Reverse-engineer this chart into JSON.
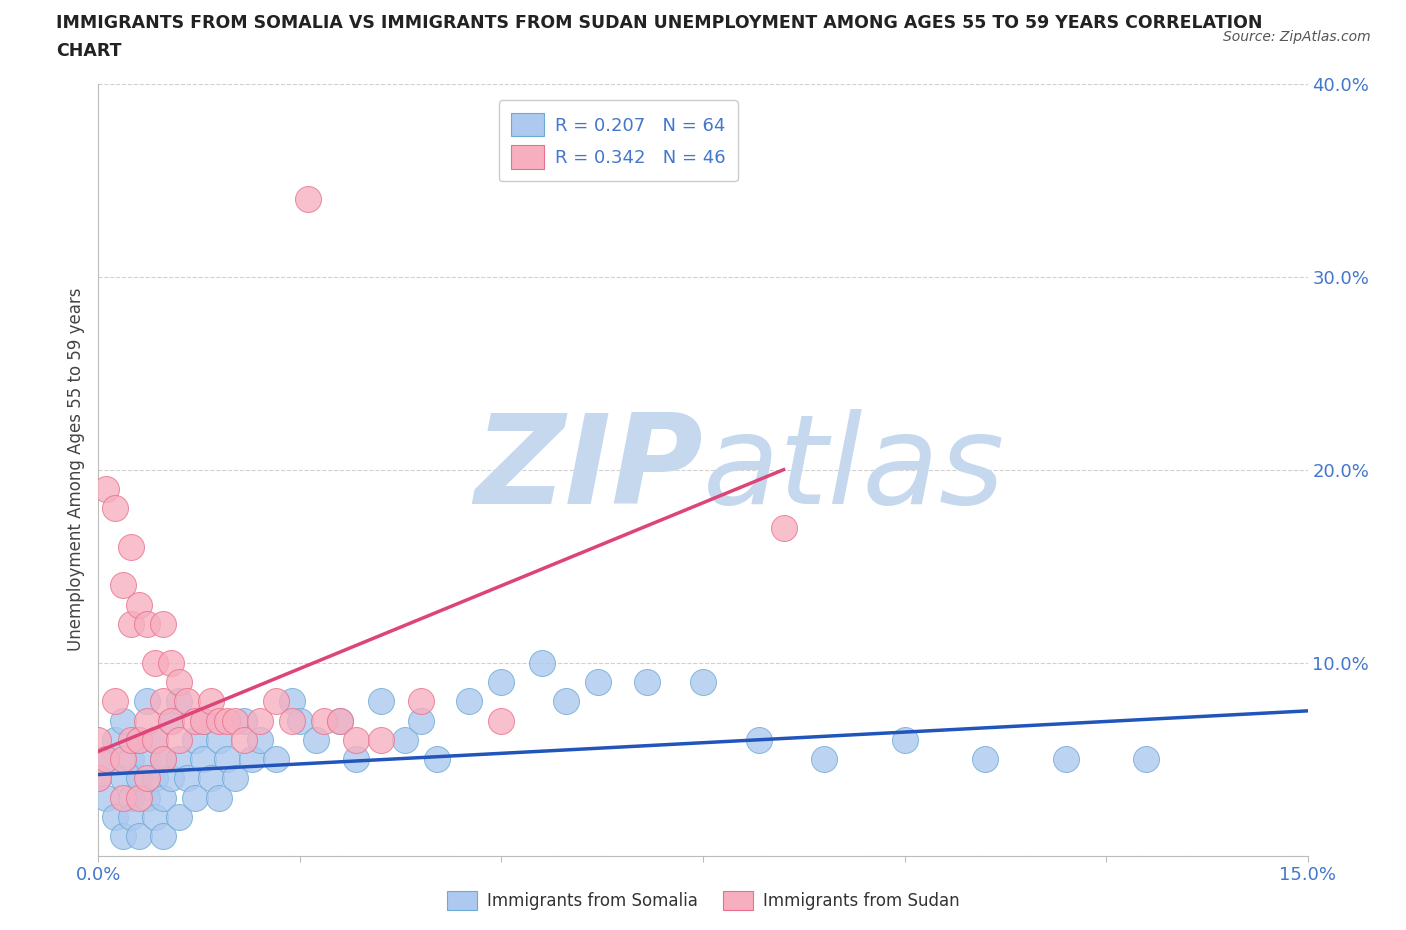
{
  "title_line1": "IMMIGRANTS FROM SOMALIA VS IMMIGRANTS FROM SUDAN UNEMPLOYMENT AMONG AGES 55 TO 59 YEARS CORRELATION",
  "title_line2": "CHART",
  "source": "Source: ZipAtlas.com",
  "ylabel": "Unemployment Among Ages 55 to 59 years",
  "xlim": [
    0.0,
    0.15
  ],
  "ylim": [
    0.0,
    0.4
  ],
  "somalia_color": "#adc9ef",
  "somalia_edge": "#6aaad4",
  "sudan_color": "#f7afc0",
  "sudan_edge": "#e8708a",
  "somalia_line_color": "#2255bb",
  "sudan_line_color": "#dd4477",
  "legend_somalia_R": "0.207",
  "legend_somalia_N": "64",
  "legend_sudan_R": "0.342",
  "legend_sudan_N": "46",
  "watermark_ZIP": "ZIP",
  "watermark_atlas": "atlas",
  "watermark_color": "#c5d8ee",
  "background_color": "#ffffff",
  "grid_color": "#cccccc",
  "tick_color": "#4477cc",
  "somalia_x": [
    0.0,
    0.001,
    0.001,
    0.002,
    0.002,
    0.003,
    0.003,
    0.003,
    0.004,
    0.004,
    0.004,
    0.005,
    0.005,
    0.005,
    0.006,
    0.006,
    0.006,
    0.007,
    0.007,
    0.007,
    0.008,
    0.008,
    0.008,
    0.009,
    0.009,
    0.01,
    0.01,
    0.01,
    0.011,
    0.012,
    0.012,
    0.013,
    0.013,
    0.014,
    0.015,
    0.015,
    0.016,
    0.017,
    0.018,
    0.019,
    0.02,
    0.022,
    0.024,
    0.025,
    0.027,
    0.03,
    0.032,
    0.035,
    0.038,
    0.04,
    0.042,
    0.046,
    0.05,
    0.055,
    0.058,
    0.062,
    0.068,
    0.075,
    0.082,
    0.09,
    0.1,
    0.11,
    0.12,
    0.13
  ],
  "somalia_y": [
    0.04,
    0.03,
    0.05,
    0.02,
    0.06,
    0.01,
    0.04,
    0.07,
    0.03,
    0.05,
    0.02,
    0.04,
    0.06,
    0.01,
    0.03,
    0.05,
    0.08,
    0.02,
    0.04,
    0.06,
    0.03,
    0.05,
    0.01,
    0.04,
    0.07,
    0.02,
    0.05,
    0.08,
    0.04,
    0.03,
    0.06,
    0.05,
    0.07,
    0.04,
    0.03,
    0.06,
    0.05,
    0.04,
    0.07,
    0.05,
    0.06,
    0.05,
    0.08,
    0.07,
    0.06,
    0.07,
    0.05,
    0.08,
    0.06,
    0.07,
    0.05,
    0.08,
    0.09,
    0.1,
    0.08,
    0.09,
    0.09,
    0.09,
    0.06,
    0.05,
    0.06,
    0.05,
    0.05,
    0.05
  ],
  "sudan_x": [
    0.0,
    0.0,
    0.001,
    0.001,
    0.002,
    0.002,
    0.003,
    0.003,
    0.003,
    0.004,
    0.004,
    0.004,
    0.005,
    0.005,
    0.005,
    0.006,
    0.006,
    0.006,
    0.007,
    0.007,
    0.008,
    0.008,
    0.008,
    0.009,
    0.009,
    0.01,
    0.01,
    0.011,
    0.012,
    0.013,
    0.014,
    0.015,
    0.016,
    0.017,
    0.018,
    0.02,
    0.022,
    0.024,
    0.026,
    0.028,
    0.03,
    0.032,
    0.035,
    0.04,
    0.05,
    0.085
  ],
  "sudan_y": [
    0.04,
    0.06,
    0.19,
    0.05,
    0.18,
    0.08,
    0.14,
    0.05,
    0.03,
    0.16,
    0.12,
    0.06,
    0.13,
    0.06,
    0.03,
    0.12,
    0.07,
    0.04,
    0.1,
    0.06,
    0.12,
    0.08,
    0.05,
    0.1,
    0.07,
    0.09,
    0.06,
    0.08,
    0.07,
    0.07,
    0.08,
    0.07,
    0.07,
    0.07,
    0.06,
    0.07,
    0.08,
    0.07,
    0.34,
    0.07,
    0.07,
    0.06,
    0.06,
    0.08,
    0.07,
    0.17
  ],
  "somalia_trend": [
    0.042,
    0.075
  ],
  "sudan_trend_x": [
    0.0,
    0.085
  ],
  "sudan_trend": [
    0.054,
    0.2
  ]
}
